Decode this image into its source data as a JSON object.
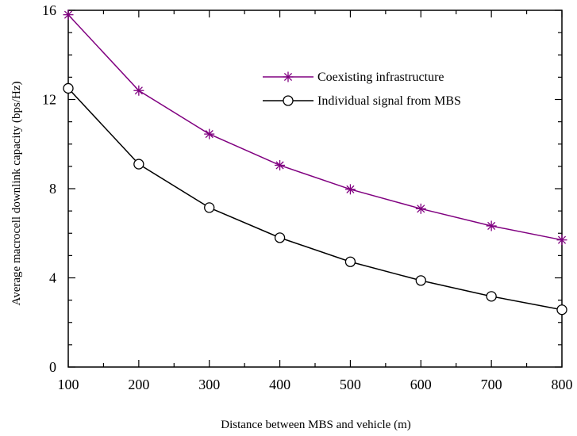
{
  "chart_data": {
    "type": "line",
    "title": "",
    "xlabel": "Distance between MBS and vehicle (m)",
    "ylabel": "Average macrocell downlink capacity (bps/Hz)",
    "xlim": [
      100,
      800
    ],
    "ylim": [
      0,
      16
    ],
    "x_ticks": [
      "100",
      "200",
      "300",
      "400",
      "500",
      "600",
      "700",
      "800"
    ],
    "y_ticks": [
      "0",
      "4",
      "8",
      "12",
      "16"
    ],
    "grid": false,
    "legend_position": "top-right",
    "x": [
      100,
      200,
      300,
      400,
      500,
      600,
      700,
      800
    ],
    "series": [
      {
        "name": "Coexisting infrastructure",
        "values": [
          15.8,
          12.4,
          10.45,
          9.05,
          7.97,
          7.1,
          6.33,
          5.7
        ],
        "color": "#800080",
        "marker": "asterisk"
      },
      {
        "name": "Individual signal from MBS",
        "values": [
          12.5,
          9.1,
          7.15,
          5.8,
          4.72,
          3.88,
          3.17,
          2.57
        ],
        "color": "#000000",
        "marker": "circle"
      }
    ]
  }
}
